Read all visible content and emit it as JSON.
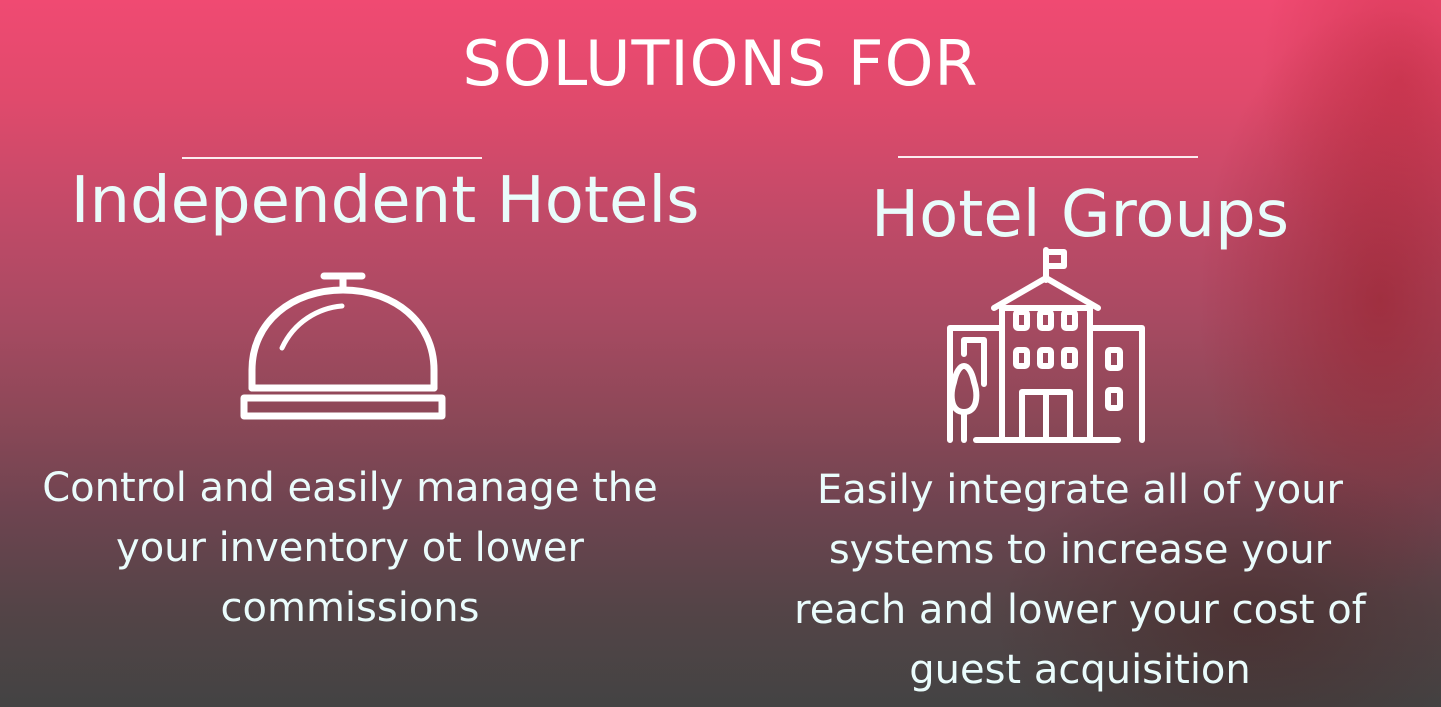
{
  "header": {
    "title": "SOLUTIONS FOR"
  },
  "columns": [
    {
      "heading": "Independent Hotels",
      "icon": "service-bell-icon",
      "description": "Control and easily manage the your inventory ot lower commissions"
    },
    {
      "heading": "Hotel Groups",
      "icon": "hotel-building-icon",
      "description": "Easily integrate all of your systems to increase your reach and lower your cost of guest acquisition"
    }
  ],
  "colors": {
    "top": "#f04a72",
    "bottom": "#434343",
    "text": "#e8fbfb"
  }
}
